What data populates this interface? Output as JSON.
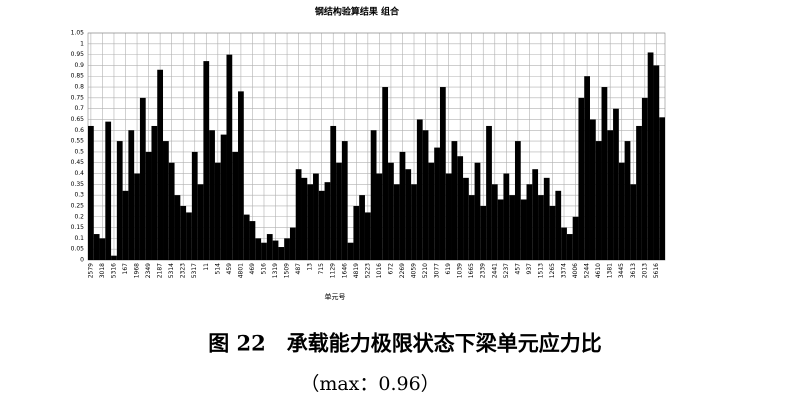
{
  "chart_data": {
    "type": "bar",
    "title": "钢结构验算结果 组合",
    "x_label": "单元号",
    "caption": "图 22　承载能力极限状态下梁单元应力比",
    "note": "（max：0.96）",
    "color": "#000000",
    "grid": true,
    "ylim": [
      0,
      1.05
    ],
    "yticks": [
      0,
      0.05,
      0.1,
      0.15,
      0.2,
      0.25,
      0.3,
      0.35,
      0.4,
      0.45,
      0.5,
      0.55,
      0.6,
      0.65,
      0.7,
      0.75,
      0.8,
      0.85,
      0.9,
      0.95,
      1,
      1.05
    ],
    "categories": [
      "2579",
      null,
      "3018",
      null,
      "5316",
      null,
      "167",
      null,
      "1968",
      null,
      "2349",
      null,
      "2187",
      null,
      "5314",
      null,
      "2323",
      null,
      "5317",
      null,
      "11",
      null,
      "514",
      null,
      "459",
      null,
      "4801",
      null,
      "469",
      null,
      "516",
      null,
      "1319",
      null,
      "1509",
      null,
      "487",
      null,
      "13",
      null,
      "715",
      null,
      "1129",
      null,
      "1646",
      null,
      "4819",
      null,
      "5223",
      null,
      "1016",
      null,
      "672",
      null,
      "2269",
      null,
      "4059",
      null,
      "5210",
      null,
      "3077",
      null,
      "619",
      null,
      "1039",
      null,
      "1665",
      null,
      "2339",
      null,
      "2441",
      null,
      "5237",
      null,
      "457",
      null,
      "937",
      null,
      "1513",
      null,
      "1265",
      null,
      "3374",
      null,
      "4006",
      null,
      "5244",
      null,
      "4610",
      null,
      "1381",
      null,
      "3445",
      null,
      "3613",
      null,
      "2013",
      null,
      "5616",
      null
    ],
    "values": [
      0.62,
      0.12,
      0.1,
      0.64,
      0.02,
      0.55,
      0.32,
      0.6,
      0.4,
      0.75,
      0.5,
      0.62,
      0.88,
      0.55,
      0.45,
      0.3,
      0.25,
      0.22,
      0.5,
      0.35,
      0.92,
      0.6,
      0.45,
      0.58,
      0.95,
      0.5,
      0.78,
      0.21,
      0.18,
      0.1,
      0.08,
      0.12,
      0.09,
      0.06,
      0.1,
      0.15,
      0.42,
      0.38,
      0.35,
      0.4,
      0.32,
      0.36,
      0.62,
      0.45,
      0.55,
      0.08,
      0.25,
      0.3,
      0.22,
      0.6,
      0.4,
      0.8,
      0.45,
      0.35,
      0.5,
      0.42,
      0.35,
      0.65,
      0.6,
      0.45,
      0.52,
      0.8,
      0.4,
      0.55,
      0.48,
      0.38,
      0.3,
      0.45,
      0.25,
      0.62,
      0.35,
      0.28,
      0.4,
      0.3,
      0.55,
      0.28,
      0.35,
      0.42,
      0.3,
      0.38,
      0.25,
      0.32,
      0.15,
      0.12,
      0.2,
      0.75,
      0.85,
      0.65,
      0.55,
      0.8,
      0.6,
      0.7,
      0.45,
      0.55,
      0.35,
      0.62,
      0.75,
      0.96,
      0.9,
      0.66
    ]
  }
}
